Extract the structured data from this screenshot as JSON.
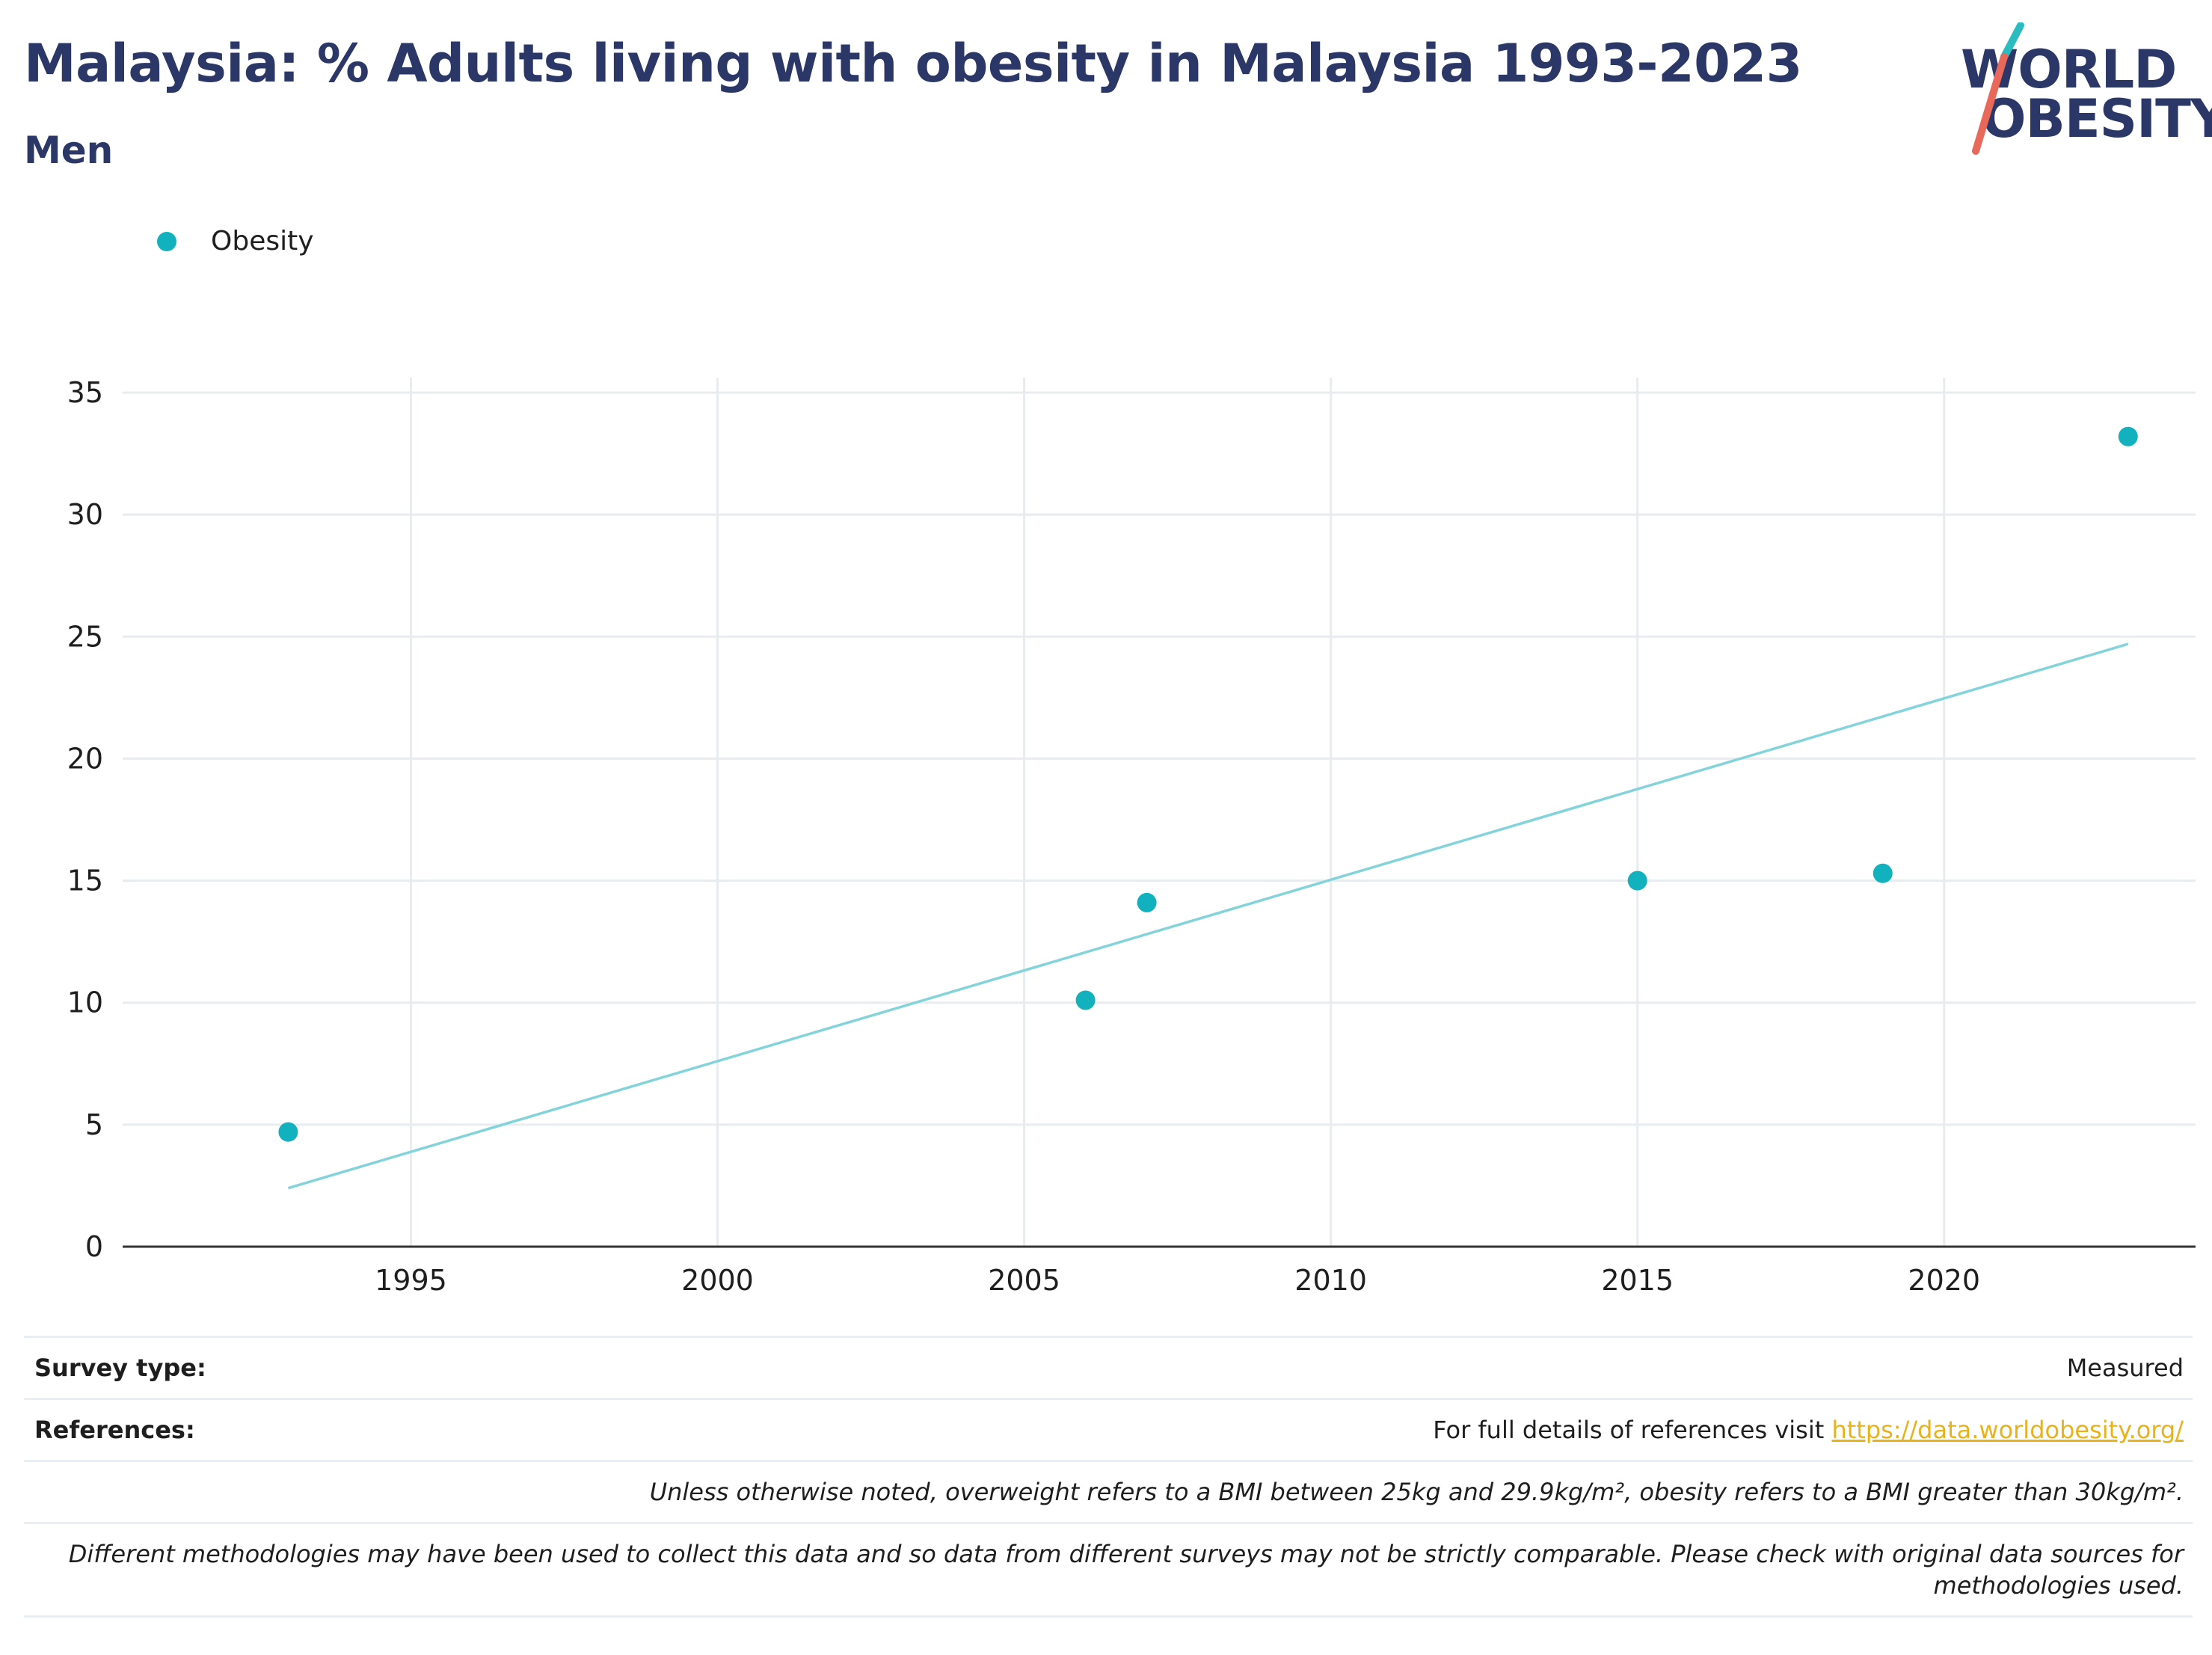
{
  "header": {
    "title": "Malaysia: % Adults living with obesity in Malaysia 1993-2023",
    "subtitle": "Men"
  },
  "logo": {
    "line1": "WORLD",
    "line2": "OBESITY",
    "colors": {
      "text": "#2b3766",
      "teal": "#2bbcc0",
      "coral": "#e8685a"
    }
  },
  "legend": {
    "label": "Obesity",
    "color": "#11b2bd"
  },
  "chart_data": {
    "type": "scatter",
    "title": "Malaysia: % Adults living with obesity in Malaysia 1993-2023",
    "subtitle": "Men",
    "xlabel": "",
    "ylabel": "",
    "xlim": [
      1990.3,
      2024.1
    ],
    "ylim": [
      0,
      35
    ],
    "x_ticks": [
      1995,
      2000,
      2005,
      2010,
      2015,
      2020
    ],
    "y_ticks": [
      0,
      5,
      10,
      15,
      20,
      25,
      30,
      35
    ],
    "grid": true,
    "legend_position": "top-left",
    "series": [
      {
        "name": "Obesity",
        "color": "#11b2bd",
        "points": [
          {
            "x": 1993,
            "y": 4.7
          },
          {
            "x": 2006,
            "y": 10.1
          },
          {
            "x": 2007,
            "y": 14.1
          },
          {
            "x": 2015,
            "y": 15.0
          },
          {
            "x": 2019,
            "y": 15.3
          },
          {
            "x": 2023,
            "y": 33.2
          }
        ]
      }
    ],
    "trendline": {
      "color": "#82d3da",
      "points": [
        {
          "x": 1993,
          "y": 2.4
        },
        {
          "x": 2023,
          "y": 24.7
        }
      ]
    }
  },
  "footer": {
    "survey_type_label": "Survey type:",
    "survey_type_value": "Measured",
    "references_label": "References:",
    "references_text": "For full details of references visit ",
    "references_link": "https://data.worldobesity.org/",
    "note1": "Unless otherwise noted, overweight refers to a BMI between 25kg and 29.9kg/m², obesity refers to a BMI greater than 30kg/m².",
    "note2_line1": "Different methodologies may have been used to collect this data and so data from different surveys may not be strictly comparable. Please check with original data sources for",
    "note2_line2": "methodologies used."
  }
}
